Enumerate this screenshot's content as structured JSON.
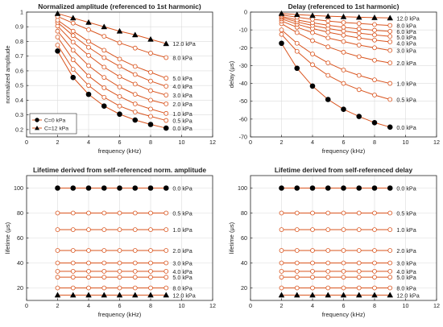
{
  "colors": {
    "series": "#d9541e",
    "filled": "#000000",
    "axis": "#262626",
    "grid": "#dcdcdc"
  },
  "chart_data": [
    {
      "type": "line",
      "title": "Normalized amplitude (referenced to 1st harmonic)",
      "xlabel": "frequency (kHz)",
      "ylabel": "normalized amplitude",
      "xlim": [
        0,
        12
      ],
      "ylim": [
        0.15,
        1.0
      ],
      "xticks": [
        0,
        2,
        4,
        6,
        8,
        10,
        12
      ],
      "yticks": [
        0.2,
        0.3,
        0.4,
        0.5,
        0.6,
        0.7,
        0.8,
        0.9,
        1
      ],
      "grid": true,
      "legend": {
        "position": "bottom-left",
        "entries": [
          {
            "label": "C=0 kPa",
            "marker": "circle"
          },
          {
            "label": "C=12 kPa",
            "marker": "triangle"
          }
        ]
      },
      "x": [
        2,
        3,
        4,
        5,
        6,
        7,
        8,
        9
      ],
      "series": [
        {
          "name": "0.0 kPa",
          "marker": "filled-circle",
          "values": [
            0.735,
            0.555,
            0.44,
            0.36,
            0.305,
            0.265,
            0.235,
            0.21
          ]
        },
        {
          "name": "0.5 kPa",
          "marker": "open-circle",
          "values": [
            0.775,
            0.61,
            0.5,
            0.42,
            0.36,
            0.32,
            0.29,
            0.262
          ]
        },
        {
          "name": "1.0 kPa",
          "marker": "open-circle",
          "values": [
            0.83,
            0.675,
            0.565,
            0.485,
            0.425,
            0.375,
            0.34,
            0.31
          ]
        },
        {
          "name": "2.0 kPa",
          "marker": "open-circle",
          "values": [
            0.87,
            0.74,
            0.635,
            0.555,
            0.49,
            0.44,
            0.4,
            0.375
          ]
        },
        {
          "name": "3.0 kPa",
          "marker": "open-circle",
          "values": [
            0.905,
            0.795,
            0.705,
            0.625,
            0.56,
            0.51,
            0.465,
            0.435
          ]
        },
        {
          "name": "4.0 kPa",
          "marker": "open-circle",
          "values": [
            0.93,
            0.84,
            0.76,
            0.69,
            0.63,
            0.575,
            0.53,
            0.495
          ]
        },
        {
          "name": "5.0 kPa",
          "marker": "open-circle",
          "values": [
            0.945,
            0.87,
            0.8,
            0.74,
            0.68,
            0.63,
            0.59,
            0.55
          ]
        },
        {
          "name": "8.0 kPa",
          "marker": "open-circle",
          "values": [
            0.97,
            0.925,
            0.88,
            0.835,
            0.79,
            0.755,
            0.72,
            0.69
          ]
        },
        {
          "name": "12.0 kPa",
          "marker": "filled-triangle",
          "values": [
            0.99,
            0.96,
            0.93,
            0.9,
            0.87,
            0.845,
            0.815,
            0.785
          ]
        }
      ]
    },
    {
      "type": "line",
      "title": "Delay (referenced to 1st harmonic)",
      "xlabel": "frequency (kHz)",
      "ylabel": "delay (μs)",
      "xlim": [
        0,
        12
      ],
      "ylim": [
        -70,
        0
      ],
      "xticks": [
        0,
        2,
        4,
        6,
        8,
        10,
        12
      ],
      "yticks": [
        -70,
        -60,
        -50,
        -40,
        -30,
        -20,
        -10,
        0
      ],
      "grid": true,
      "x": [
        2,
        3,
        4,
        5,
        6,
        7,
        8,
        9
      ],
      "series": [
        {
          "name": "0.0 kPa",
          "marker": "filled-circle",
          "values": [
            -17.5,
            -31.5,
            -41.5,
            -49,
            -54.5,
            -58.5,
            -62,
            -64.5
          ]
        },
        {
          "name": "0.5 kPa",
          "marker": "open-circle",
          "values": [
            -12.5,
            -22,
            -29.5,
            -35.5,
            -40,
            -43.5,
            -46.5,
            -49
          ]
        },
        {
          "name": "1.0 kPa",
          "marker": "open-circle",
          "values": [
            -10,
            -17.5,
            -23.5,
            -28.5,
            -32.5,
            -35.5,
            -38,
            -40
          ]
        },
        {
          "name": "2.0 kPa",
          "marker": "open-circle",
          "values": [
            -6.5,
            -11.5,
            -16,
            -19.5,
            -22.5,
            -25,
            -27,
            -28.5
          ]
        },
        {
          "name": "3.0 kPa",
          "marker": "open-circle",
          "values": [
            -5,
            -8.5,
            -11.5,
            -14.5,
            -16.5,
            -18.5,
            -20,
            -21.5
          ]
        },
        {
          "name": "4.0 kPa",
          "marker": "open-circle",
          "values": [
            -3.8,
            -6.8,
            -9.2,
            -11.3,
            -13,
            -14.5,
            -15.7,
            -16.7
          ]
        },
        {
          "name": "5.0 kPa",
          "marker": "open-circle",
          "values": [
            -3,
            -5.5,
            -7.5,
            -9.2,
            -10.6,
            -11.8,
            -12.8,
            -13.6
          ]
        },
        {
          "name": "6.0 kPa",
          "marker": "open-circle",
          "values": [
            -2.4,
            -4.4,
            -6,
            -7.4,
            -8.5,
            -9.4,
            -10.2,
            -10.8
          ]
        },
        {
          "name": "8.0 kPa",
          "marker": "open-circle",
          "values": [
            -1.6,
            -2.9,
            -4,
            -5,
            -5.8,
            -6.4,
            -7,
            -7.5
          ]
        },
        {
          "name": "12.0 kPa",
          "marker": "filled-triangle",
          "values": [
            -0.8,
            -1.4,
            -1.9,
            -2.3,
            -2.6,
            -2.9,
            -3.1,
            -3.3
          ]
        }
      ]
    },
    {
      "type": "line",
      "title": "Lifetime derived from self-referenced norm. amplitude",
      "xlabel": "frequency (kHz)",
      "ylabel": "lifetime (μs)",
      "xlim": [
        0,
        12
      ],
      "ylim": [
        10,
        110
      ],
      "xticks": [
        0,
        2,
        4,
        6,
        8,
        10,
        12
      ],
      "yticks": [
        20,
        40,
        60,
        80,
        100
      ],
      "grid": true,
      "x": [
        2,
        3,
        4,
        5,
        6,
        7,
        8,
        9
      ],
      "series": [
        {
          "name": "0.0 kPa",
          "marker": "filled-circle",
          "values": [
            100,
            100,
            100,
            100,
            100,
            100,
            100,
            100
          ]
        },
        {
          "name": "0.5 kPa",
          "marker": "open-circle",
          "values": [
            80,
            80,
            80,
            80,
            80,
            80,
            80,
            80
          ]
        },
        {
          "name": "1.0 kPa",
          "marker": "open-circle",
          "values": [
            66.7,
            66.7,
            66.7,
            66.7,
            66.7,
            66.7,
            66.7,
            66.7
          ]
        },
        {
          "name": "2.0 kPa",
          "marker": "open-circle",
          "values": [
            50,
            50,
            50,
            50,
            50,
            50,
            50,
            50
          ]
        },
        {
          "name": "3.0 kPa",
          "marker": "open-circle",
          "values": [
            40,
            40,
            40,
            40,
            40,
            40,
            40,
            40
          ]
        },
        {
          "name": "4.0 kPa",
          "marker": "open-circle",
          "values": [
            33.3,
            33.3,
            33.3,
            33.3,
            33.3,
            33.3,
            33.3,
            33.3
          ]
        },
        {
          "name": "5.0 kPa",
          "marker": "open-circle",
          "values": [
            28.6,
            28.6,
            28.6,
            28.6,
            28.6,
            28.6,
            28.6,
            28.6
          ]
        },
        {
          "name": "8.0 kPa",
          "marker": "open-circle",
          "values": [
            20,
            20,
            20,
            20,
            20,
            20,
            20,
            20
          ]
        },
        {
          "name": "12.0 kPa",
          "marker": "filled-triangle",
          "values": [
            14.3,
            14.3,
            14.3,
            14.3,
            14.3,
            14.3,
            14.3,
            14.3
          ]
        }
      ]
    },
    {
      "type": "line",
      "title": "Lifetime derived from self-referenced delay",
      "xlabel": "frequency (kHz)",
      "ylabel": "lifetime (μs)",
      "xlim": [
        0,
        12
      ],
      "ylim": [
        10,
        110
      ],
      "xticks": [
        0,
        2,
        4,
        6,
        8,
        10,
        12
      ],
      "yticks": [
        20,
        40,
        60,
        80,
        100
      ],
      "grid": true,
      "x": [
        2,
        3,
        4,
        5,
        6,
        7,
        8,
        9
      ],
      "series": [
        {
          "name": "0.0 kPa",
          "marker": "filled-circle",
          "values": [
            100,
            100,
            100,
            100,
            100,
            100,
            100,
            100
          ]
        },
        {
          "name": "0.5 kPa",
          "marker": "open-circle",
          "values": [
            80,
            80,
            80,
            80,
            80,
            80,
            80,
            80
          ]
        },
        {
          "name": "1.0 kPa",
          "marker": "open-circle",
          "values": [
            66.7,
            66.7,
            66.7,
            66.7,
            66.7,
            66.7,
            66.7,
            66.7
          ]
        },
        {
          "name": "2.0 kPa",
          "marker": "open-circle",
          "values": [
            50,
            50,
            50,
            50,
            50,
            50,
            50,
            50
          ]
        },
        {
          "name": "3.0 kPa",
          "marker": "open-circle",
          "values": [
            40,
            40,
            40,
            40,
            40,
            40,
            40,
            40
          ]
        },
        {
          "name": "4.0 kPa",
          "marker": "open-circle",
          "values": [
            33.3,
            33.3,
            33.3,
            33.3,
            33.3,
            33.3,
            33.3,
            33.3
          ]
        },
        {
          "name": "5.0 kPa",
          "marker": "open-circle",
          "values": [
            28.6,
            28.6,
            28.6,
            28.6,
            28.6,
            28.6,
            28.6,
            28.6
          ]
        },
        {
          "name": "8.0 kPa",
          "marker": "open-circle",
          "values": [
            20,
            20,
            20,
            20,
            20,
            20,
            20,
            20
          ]
        },
        {
          "name": "12.0 kPa",
          "marker": "filled-triangle",
          "values": [
            14.3,
            14.3,
            14.3,
            14.3,
            14.3,
            14.3,
            14.3,
            14.3
          ]
        }
      ]
    }
  ]
}
